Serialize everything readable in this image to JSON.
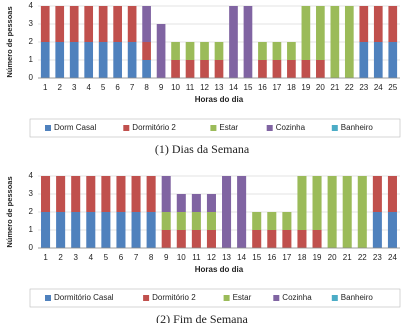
{
  "chart_data": [
    {
      "type": "bar",
      "stacked": true,
      "caption": "(1) Dias da Semana",
      "x_label": "Horas do dia",
      "y_label": "Número de pessoas",
      "categories": [
        "1",
        "2",
        "3",
        "4",
        "5",
        "6",
        "7",
        "8",
        "9",
        "10",
        "11",
        "12",
        "13",
        "14",
        "15",
        "16",
        "17",
        "18",
        "19",
        "20",
        "21",
        "22",
        "23",
        "24",
        "25"
      ],
      "ylim": [
        0,
        4
      ],
      "yticks": [
        0,
        1,
        2,
        3,
        4
      ],
      "grid": true,
      "series": [
        {
          "name": "Dorm Casal",
          "color": "#4f81bd",
          "values": [
            2,
            2,
            2,
            2,
            2,
            2,
            2,
            1,
            0,
            0,
            0,
            0,
            0,
            0,
            0,
            0,
            0,
            0,
            0,
            0,
            0,
            0,
            2,
            2,
            2
          ]
        },
        {
          "name": "Dormitório 2",
          "color": "#c0504d",
          "values": [
            2,
            2,
            2,
            2,
            2,
            2,
            2,
            1,
            0,
            1,
            1,
            1,
            1,
            0,
            0,
            1,
            1,
            1,
            1,
            1,
            0,
            0,
            2,
            2,
            2
          ]
        },
        {
          "name": "Estar",
          "color": "#9bbb59",
          "values": [
            0,
            0,
            0,
            0,
            0,
            0,
            0,
            0,
            0,
            1,
            1,
            1,
            1,
            0,
            0,
            1,
            1,
            1,
            3,
            3,
            4,
            4,
            0,
            0,
            0
          ]
        },
        {
          "name": "Cozinha",
          "color": "#8064a2",
          "values": [
            0,
            0,
            0,
            0,
            0,
            0,
            0,
            2,
            3,
            0,
            0,
            0,
            0,
            4,
            4,
            0,
            0,
            0,
            0,
            0,
            0,
            0,
            0,
            0,
            0
          ]
        },
        {
          "name": "Banheiro",
          "color": "#4bacc6",
          "values": [
            0,
            0,
            0,
            0,
            0,
            0,
            0,
            0,
            0,
            0,
            0,
            0,
            0,
            0,
            0,
            0,
            0,
            0,
            0,
            0,
            0,
            0,
            0,
            0,
            0
          ]
        }
      ]
    },
    {
      "type": "bar",
      "stacked": true,
      "caption": "(2) Fim de Semana",
      "x_label": "Horas do dia",
      "y_label": "Número de pessoas",
      "categories": [
        "1",
        "2",
        "3",
        "4",
        "5",
        "6",
        "7",
        "8",
        "9",
        "10",
        "11",
        "12",
        "13",
        "14",
        "15",
        "16",
        "17",
        "18",
        "19",
        "20",
        "21",
        "22",
        "23",
        "24"
      ],
      "ylim": [
        0,
        4
      ],
      "yticks": [
        0,
        1,
        2,
        3,
        4
      ],
      "grid": true,
      "series": [
        {
          "name": "Dormitório Casal",
          "color": "#4f81bd",
          "values": [
            2,
            2,
            2,
            2,
            2,
            2,
            2,
            2,
            0,
            0,
            0,
            0,
            0,
            0,
            0,
            0,
            0,
            0,
            0,
            0,
            0,
            0,
            2,
            2
          ]
        },
        {
          "name": "Dormitório 2",
          "color": "#c0504d",
          "values": [
            2,
            2,
            2,
            2,
            2,
            2,
            2,
            2,
            1,
            1,
            1,
            1,
            0,
            0,
            1,
            1,
            1,
            1,
            1,
            0,
            0,
            0,
            2,
            2
          ]
        },
        {
          "name": "Estar",
          "color": "#9bbb59",
          "values": [
            0,
            0,
            0,
            0,
            0,
            0,
            0,
            0,
            1,
            1,
            1,
            1,
            0,
            0,
            1,
            1,
            1,
            3,
            3,
            4,
            4,
            4,
            0,
            0
          ]
        },
        {
          "name": "Cozinha",
          "color": "#8064a2",
          "values": [
            0,
            0,
            0,
            0,
            0,
            0,
            0,
            0,
            2,
            1,
            1,
            1,
            4,
            4,
            0,
            0,
            0,
            0,
            0,
            0,
            0,
            0,
            0,
            0
          ]
        },
        {
          "name": "Banheiro",
          "color": "#4bacc6",
          "values": [
            0,
            0,
            0,
            0,
            0,
            0,
            0,
            0,
            0,
            0,
            0,
            0,
            0,
            0,
            0,
            0,
            0,
            0,
            0,
            0,
            0,
            0,
            0,
            0
          ]
        }
      ]
    }
  ]
}
